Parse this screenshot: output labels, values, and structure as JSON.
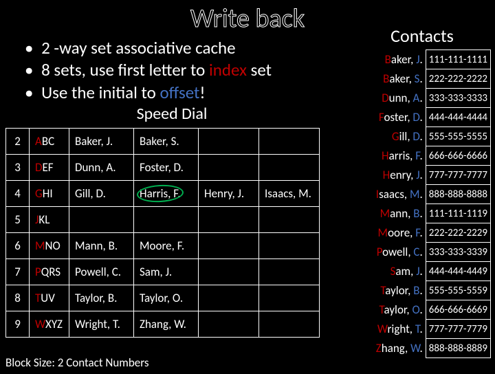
{
  "title": "Write back",
  "bullets": [
    {
      "pre": "2 -way set ",
      "mid": "associative",
      "post": " cache",
      "mid_color": "normal"
    },
    {
      "pre": "8 sets, use first letter to ",
      "mid": "index",
      "post": " set",
      "mid_color": "red"
    },
    {
      "pre": "Use the initial to ",
      "mid": "offset",
      "post": "!",
      "mid_color": "blue"
    }
  ],
  "speed_dial_title": "Speed Dial",
  "speed_dial": {
    "rows": [
      {
        "num": "2",
        "keys": "ABC",
        "c1": "Baker, J.",
        "c2": "Baker, S.",
        "c3": "",
        "c4": ""
      },
      {
        "num": "3",
        "keys": "DEF",
        "c1": "Dunn, A.",
        "c2": "Foster, D.",
        "c3": "",
        "c4": ""
      },
      {
        "num": "4",
        "keys": "GHI",
        "c1": "Gill, D.",
        "c2": "Harris, F.",
        "c3": "Henry, J.",
        "c4": "Isaacs, M.",
        "circle_c2": true
      },
      {
        "num": "5",
        "keys": "JKL",
        "c1": "",
        "c2": "",
        "c3": "",
        "c4": ""
      },
      {
        "num": "6",
        "keys": "MNO",
        "c1": "Mann, B.",
        "c2": "Moore, F.",
        "c3": "",
        "c4": ""
      },
      {
        "num": "7",
        "keys": "PQRS",
        "c1": "Powell, C.",
        "c2": "Sam, J.",
        "c3": "",
        "c4": ""
      },
      {
        "num": "8",
        "keys": "TUV",
        "c1": "Taylor, B.",
        "c2": "Taylor, O.",
        "c3": "",
        "c4": ""
      },
      {
        "num": "9",
        "keys": "WXYZ",
        "c1": "Wright, T.",
        "c2": "Zhang, W.",
        "c3": "",
        "c4": ""
      }
    ]
  },
  "footer": "Block Size: 2 Contact Numbers",
  "contacts_title": "Contacts",
  "contacts": [
    {
      "name": "Baker, J.",
      "phone": "111-111-1111"
    },
    {
      "name": "Baker, S.",
      "phone": "222-222-2222"
    },
    {
      "name": "Dunn, A.",
      "phone": "333-333-3333"
    },
    {
      "name": "Foster, D.",
      "phone": "444-444-4444"
    },
    {
      "name": "Gill, D.",
      "phone": "555-555-5555"
    },
    {
      "name": "Harris, F.",
      "phone": "666-666-6666"
    },
    {
      "name": "Henry, J.",
      "phone": "777-777-7777"
    },
    {
      "name": "Isaacs, M.",
      "phone": "888-888-8888"
    },
    {
      "name": "Mann, B.",
      "phone": "111-111-1119"
    },
    {
      "name": "Moore, F.",
      "phone": "222-222-2229"
    },
    {
      "name": "Powell, C.",
      "phone": "333-333-3339"
    },
    {
      "name": "Sam, J.",
      "phone": "444-444-4449"
    },
    {
      "name": "Taylor, B.",
      "phone": "555-555-5559"
    },
    {
      "name": "Taylor, O.",
      "phone": "666-666-6669"
    },
    {
      "name": "Wright, T.",
      "phone": "777-777-7779"
    },
    {
      "name": "Zhang, W.",
      "phone": "888-888-8889"
    }
  ],
  "colors": {
    "bg": "#000000",
    "text": "#ffffff",
    "red": "#c00000",
    "blue": "#4472c4",
    "green": "#00b050"
  }
}
